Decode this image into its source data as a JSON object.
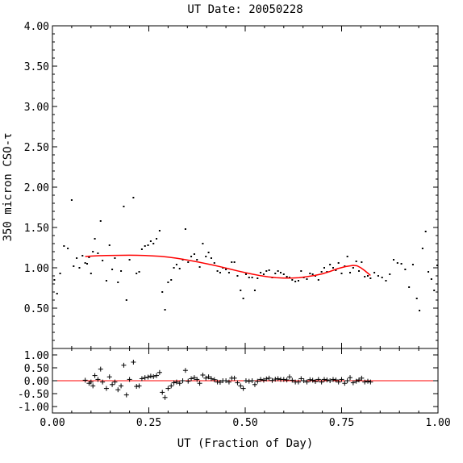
{
  "chart_data": [
    {
      "type": "scatter",
      "title": "UT Date: 20050228",
      "ylabel": "350 micron CSO-τ",
      "xlabel": "",
      "xlim": [
        0.0,
        1.0
      ],
      "ylim": [
        0.0,
        4.0
      ],
      "x_tick_labels": [],
      "y_ticks": [
        0.5,
        1.0,
        1.5,
        2.0,
        2.5,
        3.0,
        3.5,
        4.0
      ],
      "y_tick_labels": [
        "0.50",
        "1.00",
        "1.50",
        "2.00",
        "2.50",
        "3.00",
        "3.50",
        "4.00"
      ],
      "grid": false,
      "series": [
        {
          "marker": "dot",
          "color": "#000000",
          "x": [
            0.005,
            0.012,
            0.02,
            0.03,
            0.04,
            0.05,
            0.055,
            0.063,
            0.07,
            0.078,
            0.085,
            0.09,
            0.095,
            0.1,
            0.105,
            0.11,
            0.118,
            0.125,
            0.13,
            0.14,
            0.148,
            0.155,
            0.162,
            0.17,
            0.178,
            0.185,
            0.192,
            0.2,
            0.21,
            0.218,
            0.225,
            0.232,
            0.24,
            0.248,
            0.255,
            0.262,
            0.27,
            0.278,
            0.285,
            0.292,
            0.3,
            0.308,
            0.315,
            0.322,
            0.33,
            0.338,
            0.345,
            0.352,
            0.36,
            0.368,
            0.375,
            0.382,
            0.39,
            0.398,
            0.405,
            0.412,
            0.42,
            0.428,
            0.435,
            0.442,
            0.45,
            0.458,
            0.465,
            0.472,
            0.48,
            0.488,
            0.495,
            0.502,
            0.51,
            0.518,
            0.525,
            0.532,
            0.54,
            0.548,
            0.555,
            0.562,
            0.57,
            0.578,
            0.585,
            0.592,
            0.6,
            0.608,
            0.615,
            0.622,
            0.63,
            0.638,
            0.645,
            0.652,
            0.66,
            0.668,
            0.675,
            0.682,
            0.69,
            0.698,
            0.705,
            0.712,
            0.72,
            0.728,
            0.735,
            0.742,
            0.75,
            0.758,
            0.765,
            0.772,
            0.78,
            0.788,
            0.795,
            0.802,
            0.81,
            0.818,
            0.825,
            0.835,
            0.845,
            0.855,
            0.865,
            0.875,
            0.885,
            0.895,
            0.905,
            0.915,
            0.925,
            0.935,
            0.945,
            0.952,
            0.96,
            0.968,
            0.975,
            0.983,
            0.99,
            0.998
          ],
          "y": [
            0.85,
            0.68,
            0.93,
            1.27,
            1.24,
            1.84,
            1.02,
            1.12,
            1.0,
            1.15,
            1.06,
            1.05,
            1.13,
            0.93,
            1.2,
            1.36,
            1.18,
            1.58,
            1.09,
            0.84,
            1.28,
            0.98,
            1.12,
            0.82,
            0.96,
            1.76,
            0.6,
            1.1,
            1.87,
            0.93,
            0.95,
            1.23,
            1.27,
            1.28,
            1.33,
            1.3,
            1.36,
            1.46,
            0.7,
            0.48,
            0.82,
            0.85,
            1.0,
            1.04,
            0.99,
            1.1,
            1.48,
            1.07,
            1.14,
            1.17,
            1.1,
            1.01,
            1.3,
            1.14,
            1.19,
            1.12,
            1.06,
            0.96,
            0.94,
            1.0,
            0.98,
            0.94,
            1.07,
            1.07,
            0.9,
            0.72,
            0.62,
            0.92,
            0.88,
            0.88,
            0.72,
            0.87,
            0.94,
            0.92,
            0.96,
            0.97,
            0.88,
            0.93,
            0.96,
            0.94,
            0.92,
            0.89,
            0.88,
            0.85,
            0.83,
            0.84,
            0.96,
            0.88,
            0.86,
            0.93,
            0.92,
            0.9,
            0.85,
            0.95,
            1.0,
            0.95,
            1.04,
            1.0,
            0.97,
            1.06,
            0.93,
            1.02,
            1.14,
            0.94,
            1.0,
            1.08,
            0.96,
            1.07,
            0.89,
            0.9,
            0.87,
            0.94,
            0.9,
            0.88,
            0.84,
            0.92,
            1.1,
            1.06,
            1.05,
            0.98,
            0.76,
            1.04,
            0.62,
            0.47,
            1.24,
            1.45,
            0.95,
            0.86,
            0.72,
            1.03
          ]
        },
        {
          "marker": "line",
          "color": "#ff0000",
          "x": [
            0.085,
            0.1,
            0.12,
            0.14,
            0.16,
            0.18,
            0.2,
            0.22,
            0.24,
            0.26,
            0.28,
            0.3,
            0.32,
            0.34,
            0.36,
            0.38,
            0.4,
            0.42,
            0.44,
            0.46,
            0.48,
            0.5,
            0.52,
            0.54,
            0.56,
            0.58,
            0.6,
            0.62,
            0.64,
            0.66,
            0.68,
            0.7,
            0.72,
            0.74,
            0.76,
            0.78,
            0.79,
            0.8,
            0.81,
            0.82,
            0.825
          ],
          "y": [
            1.14,
            1.145,
            1.15,
            1.152,
            1.154,
            1.155,
            1.156,
            1.155,
            1.152,
            1.148,
            1.142,
            1.132,
            1.12,
            1.105,
            1.088,
            1.07,
            1.05,
            1.03,
            1.008,
            0.985,
            0.962,
            0.94,
            0.92,
            0.902,
            0.888,
            0.878,
            0.873,
            0.873,
            0.878,
            0.89,
            0.905,
            0.925,
            0.955,
            0.99,
            1.015,
            1.03,
            1.025,
            1.0,
            0.965,
            0.925,
            0.905
          ]
        }
      ]
    },
    {
      "type": "scatter",
      "title": "",
      "ylabel": "",
      "xlabel": "UT (Fraction of Day)",
      "xlim": [
        0.0,
        1.0
      ],
      "ylim": [
        -1.25,
        1.25
      ],
      "x_ticks": [
        0.0,
        0.25,
        0.5,
        0.75,
        1.0
      ],
      "x_tick_labels": [
        "0.00",
        "0.25",
        "0.50",
        "0.75",
        "1.00"
      ],
      "y_ticks": [
        -1.0,
        -0.5,
        0.0,
        0.5,
        1.0
      ],
      "y_tick_labels": [
        "-1.00",
        "-0.50",
        "0.00",
        "0.50",
        "1.00"
      ],
      "grid": false,
      "reference_line": {
        "y": 0.0,
        "color": "#ff0000"
      },
      "series": [
        {
          "marker": "plus",
          "color": "#000000",
          "x": [
            0.085,
            0.095,
            0.1,
            0.105,
            0.11,
            0.118,
            0.125,
            0.13,
            0.14,
            0.148,
            0.155,
            0.162,
            0.17,
            0.178,
            0.185,
            0.192,
            0.2,
            0.21,
            0.218,
            0.225,
            0.232,
            0.24,
            0.248,
            0.255,
            0.262,
            0.27,
            0.278,
            0.285,
            0.292,
            0.3,
            0.308,
            0.315,
            0.322,
            0.33,
            0.338,
            0.345,
            0.352,
            0.36,
            0.368,
            0.375,
            0.382,
            0.39,
            0.398,
            0.405,
            0.412,
            0.42,
            0.428,
            0.435,
            0.442,
            0.45,
            0.458,
            0.465,
            0.472,
            0.48,
            0.488,
            0.495,
            0.502,
            0.51,
            0.518,
            0.525,
            0.532,
            0.54,
            0.548,
            0.555,
            0.562,
            0.57,
            0.578,
            0.585,
            0.592,
            0.6,
            0.608,
            0.615,
            0.622,
            0.63,
            0.638,
            0.645,
            0.652,
            0.66,
            0.668,
            0.675,
            0.682,
            0.69,
            0.698,
            0.705,
            0.712,
            0.72,
            0.728,
            0.735,
            0.742,
            0.75,
            0.758,
            0.765,
            0.772,
            0.78,
            0.788,
            0.795,
            0.802,
            0.81,
            0.818,
            0.825
          ],
          "y": [
            0.02,
            -0.1,
            -0.05,
            -0.2,
            0.2,
            0.05,
            0.45,
            -0.05,
            -0.3,
            0.15,
            -0.15,
            -0.05,
            -0.35,
            -0.2,
            0.6,
            -0.55,
            0.05,
            0.72,
            -0.22,
            -0.2,
            0.08,
            0.12,
            0.14,
            0.18,
            0.16,
            0.2,
            0.32,
            -0.45,
            -0.65,
            -0.3,
            -0.2,
            -0.08,
            -0.05,
            -0.1,
            0.0,
            0.4,
            -0.02,
            0.08,
            0.12,
            0.05,
            -0.1,
            0.22,
            0.1,
            0.15,
            0.08,
            0.04,
            -0.05,
            -0.06,
            0.0,
            0.0,
            -0.05,
            0.1,
            0.1,
            -0.08,
            -0.2,
            -0.3,
            0.0,
            -0.02,
            0.0,
            -0.15,
            -0.02,
            0.05,
            0.02,
            0.07,
            0.1,
            0.01,
            0.06,
            0.08,
            0.05,
            0.05,
            0.03,
            0.15,
            0.02,
            -0.05,
            -0.05,
            0.08,
            0.0,
            -0.05,
            0.04,
            0.02,
            -0.03,
            0.05,
            -0.05,
            0.05,
            0.03,
            0.0,
            0.05,
            0.03,
            -0.05,
            0.05,
            -0.1,
            0.0,
            0.12,
            -0.08,
            -0.02,
            0.03,
            0.1,
            -0.05,
            -0.02,
            -0.05
          ]
        }
      ]
    }
  ]
}
